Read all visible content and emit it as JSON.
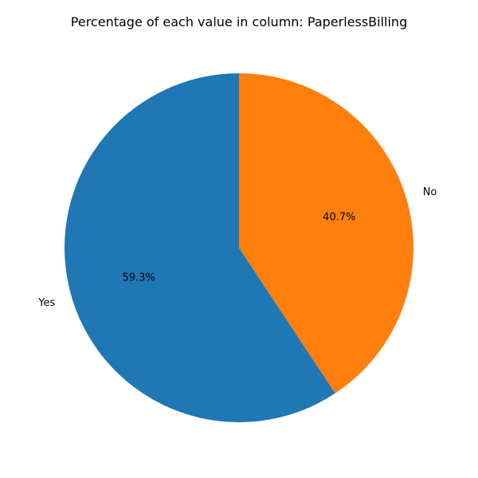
{
  "chart_data": {
    "type": "pie",
    "title": "Percentage of each value in column: PaperlessBilling",
    "categories": [
      "Yes",
      "No"
    ],
    "values": [
      59.3,
      40.7
    ],
    "value_labels": [
      "59.3%",
      "40.7%"
    ],
    "colors": [
      "#1f77b4",
      "#ff7f0e"
    ],
    "start_angle_deg": 90,
    "direction": "counterclockwise",
    "legend": "none"
  }
}
